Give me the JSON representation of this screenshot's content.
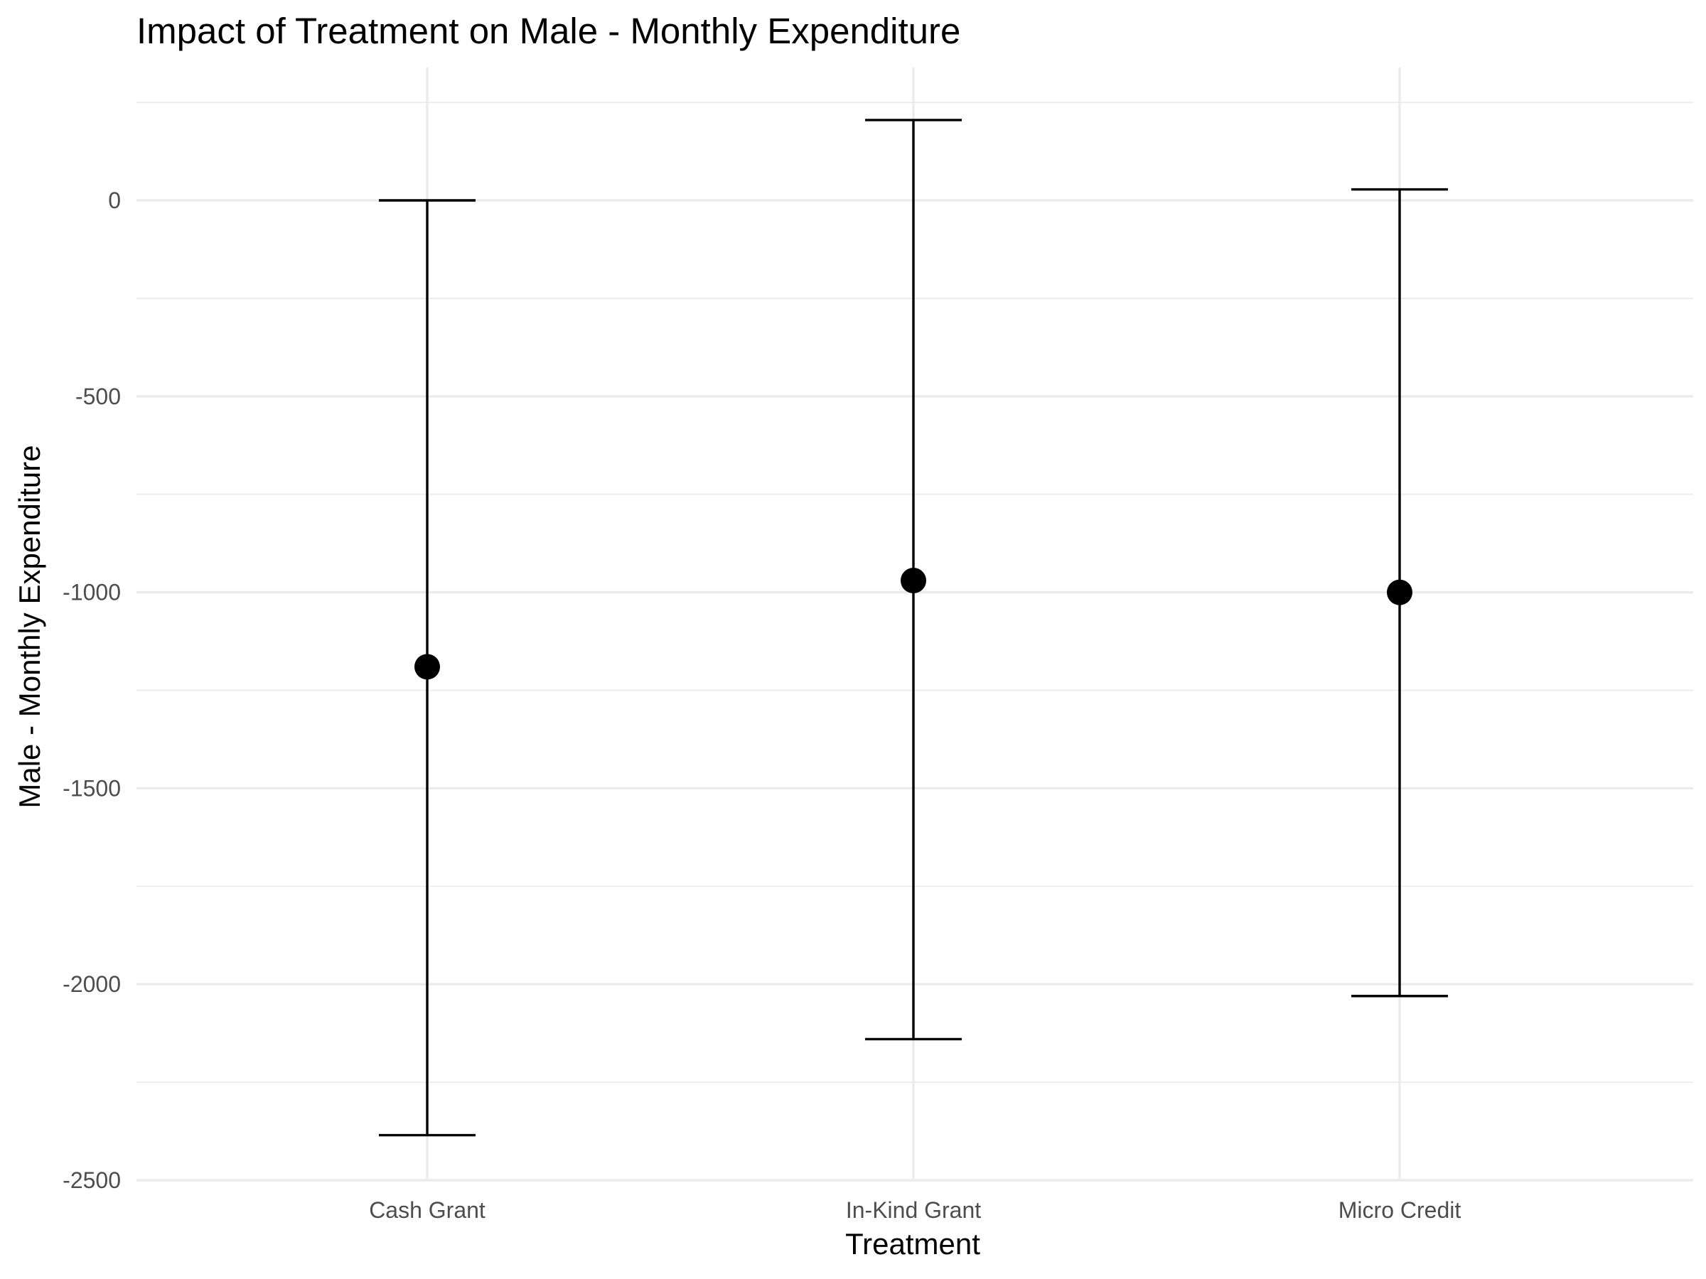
{
  "chart_data": {
    "type": "errorbar",
    "title": "Impact of Treatment on Male - Monthly Expenditure",
    "xlabel": "Treatment",
    "ylabel": "Male - Monthly Expenditure",
    "categories": [
      "Cash Grant",
      "In-Kind Grant",
      "Micro Credit"
    ],
    "estimates": [
      -1190,
      -970,
      -1000
    ],
    "lower": [
      -2385,
      -2140,
      -2030
    ],
    "upper": [
      0,
      205,
      28
    ],
    "ylim": [
      -2500,
      250
    ],
    "yticks": [
      0,
      -500,
      -1000,
      -1500,
      -2000,
      -2500
    ],
    "ytick_labels": [
      "0",
      "-500",
      "-1000",
      "-1500",
      "-2000",
      "-2500"
    ],
    "grid": true,
    "legend": "none",
    "colors": {
      "marks": "#000000",
      "grid": "#ebebeb",
      "tick_text": "#4d4d4d",
      "background": "#ffffff"
    }
  }
}
